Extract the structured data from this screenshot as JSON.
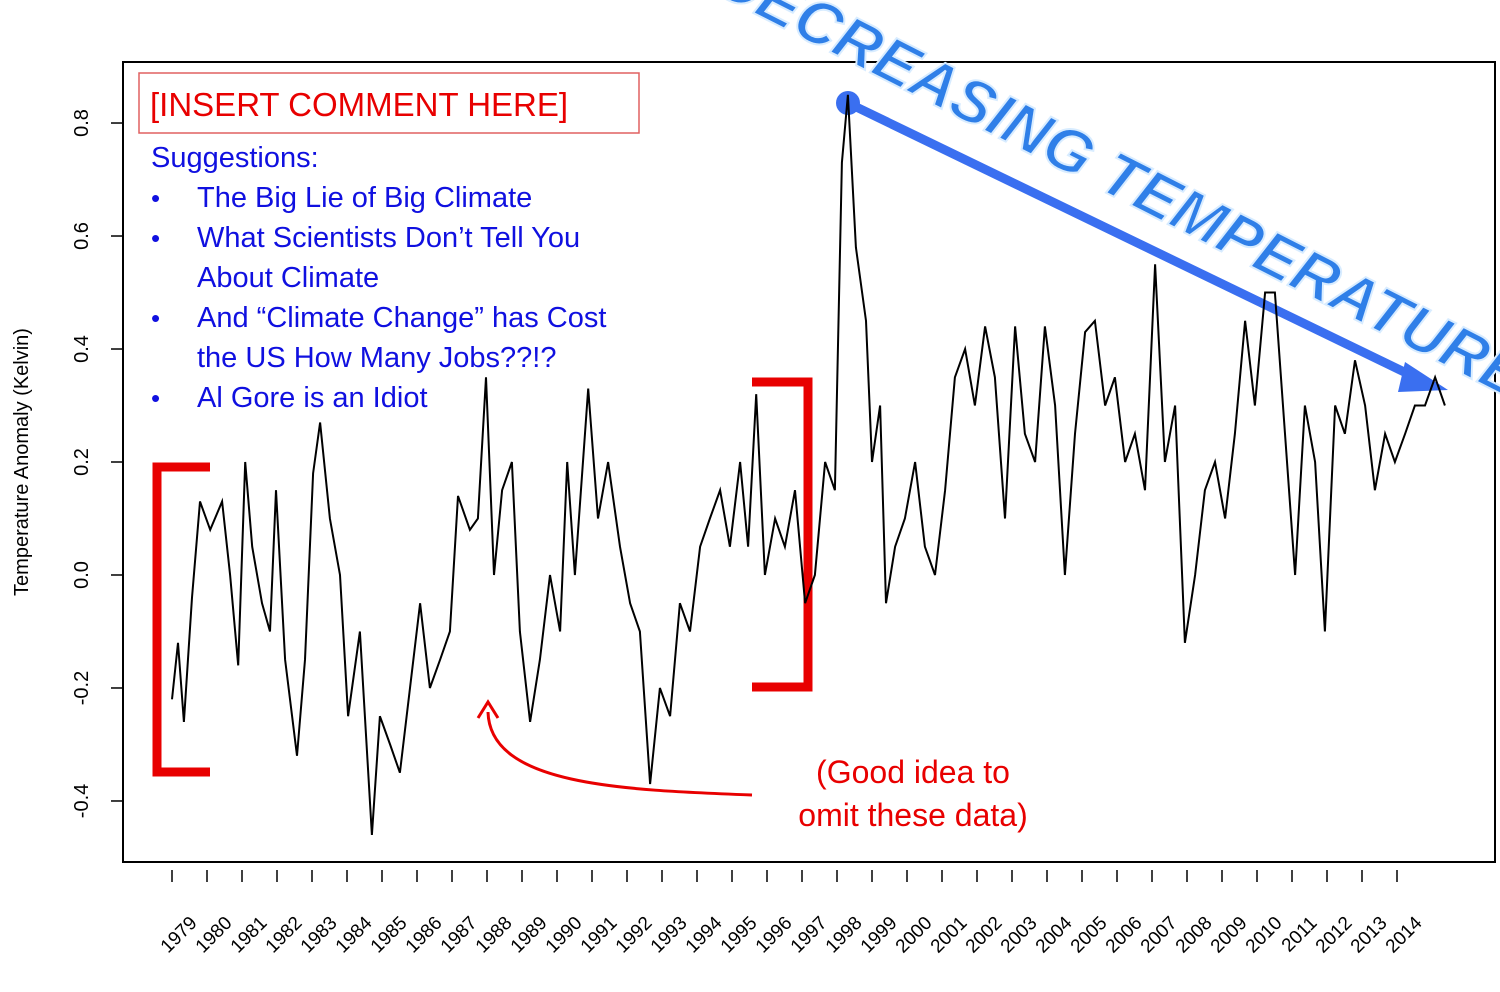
{
  "chart_data": {
    "type": "line",
    "y_label": "Temperature Anomaly (Kelvin)",
    "color": "#000000",
    "x": [
      1979.0,
      1979.17,
      1979.34,
      1979.57,
      1979.8,
      1980.09,
      1980.43,
      1980.66,
      1980.89,
      1981.09,
      1981.29,
      1981.57,
      1981.8,
      1981.97,
      1982.23,
      1982.57,
      1982.8,
      1983.03,
      1983.23,
      1983.51,
      1983.8,
      1984.03,
      1984.37,
      1984.71,
      1984.94,
      1985.23,
      1985.51,
      1985.8,
      1986.09,
      1986.37,
      1986.66,
      1986.94,
      1987.17,
      1987.51,
      1987.74,
      1987.97,
      1988.2,
      1988.43,
      1988.71,
      1988.94,
      1989.23,
      1989.51,
      1989.8,
      1990.09,
      1990.29,
      1990.51,
      1990.89,
      1991.17,
      1991.46,
      1991.8,
      1992.09,
      1992.37,
      1992.66,
      1992.94,
      1993.23,
      1993.51,
      1993.8,
      1994.09,
      1994.37,
      1994.66,
      1994.94,
      1995.23,
      1995.46,
      1995.69,
      1995.94,
      1996.23,
      1996.51,
      1996.8,
      1997.09,
      1997.37,
      1997.66,
      1997.94,
      1998.14,
      1998.31,
      1998.54,
      1998.83,
      1999.0,
      1999.23,
      1999.4,
      1999.66,
      1999.94,
      2000.23,
      2000.51,
      2000.8,
      2001.09,
      2001.37,
      2001.66,
      2001.94,
      2002.23,
      2002.51,
      2002.8,
      2003.09,
      2003.37,
      2003.66,
      2003.94,
      2004.23,
      2004.51,
      2004.8,
      2005.09,
      2005.37,
      2005.66,
      2005.94,
      2006.23,
      2006.51,
      2006.8,
      2007.09,
      2007.37,
      2007.66,
      2007.94,
      2008.23,
      2008.51,
      2008.8,
      2009.09,
      2009.37,
      2009.66,
      2009.94,
      2010.23,
      2010.51,
      2010.8,
      2011.09,
      2011.37,
      2011.66,
      2011.94,
      2012.23,
      2012.51,
      2012.8,
      2013.09,
      2013.37,
      2013.66,
      2013.94,
      2014.23,
      2014.51,
      2014.8,
      2015.09,
      2015.37
    ],
    "values": [
      -0.22,
      -0.12,
      -0.26,
      -0.04,
      0.13,
      0.08,
      0.13,
      0.0,
      -0.16,
      0.2,
      0.05,
      -0.05,
      -0.1,
      0.15,
      -0.15,
      -0.32,
      -0.15,
      0.18,
      0.27,
      0.1,
      0.0,
      -0.25,
      -0.1,
      -0.46,
      -0.25,
      -0.3,
      -0.35,
      -0.2,
      -0.05,
      -0.2,
      -0.15,
      -0.1,
      0.14,
      0.08,
      0.1,
      0.35,
      0.0,
      0.15,
      0.2,
      -0.1,
      -0.26,
      -0.15,
      0.0,
      -0.1,
      0.2,
      0.0,
      0.33,
      0.1,
      0.2,
      0.05,
      -0.05,
      -0.1,
      -0.37,
      -0.2,
      -0.25,
      -0.05,
      -0.1,
      0.05,
      0.1,
      0.15,
      0.05,
      0.2,
      0.05,
      0.32,
      0.0,
      0.1,
      0.05,
      0.15,
      -0.05,
      0.0,
      0.2,
      0.15,
      0.73,
      0.85,
      0.58,
      0.45,
      0.2,
      0.3,
      -0.05,
      0.05,
      0.1,
      0.2,
      0.05,
      0.0,
      0.15,
      0.35,
      0.4,
      0.3,
      0.44,
      0.35,
      0.1,
      0.44,
      0.25,
      0.2,
      0.44,
      0.3,
      0.0,
      0.25,
      0.43,
      0.45,
      0.3,
      0.35,
      0.2,
      0.25,
      0.15,
      0.55,
      0.2,
      0.3,
      -0.12,
      0.0,
      0.15,
      0.2,
      0.1,
      0.25,
      0.45,
      0.3,
      0.5,
      0.5,
      0.25,
      0.0,
      0.3,
      0.2,
      -0.1,
      0.3,
      0.25,
      0.38,
      0.3,
      0.15,
      0.25,
      0.2,
      0.25,
      0.3,
      0.3,
      0.35,
      0.3
    ],
    "xlim": [
      1977.6,
      2016.8
    ],
    "xticks": [
      1979,
      1980,
      1981,
      1982,
      1983,
      1984,
      1985,
      1986,
      1987,
      1988,
      1989,
      1990,
      1991,
      1992,
      1993,
      1994,
      1995,
      1996,
      1997,
      1998,
      1999,
      2000,
      2001,
      2002,
      2003,
      2004,
      2005,
      2006,
      2007,
      2008,
      2009,
      2010,
      2011,
      2012,
      2013,
      2014
    ],
    "ylim": [
      -0.508,
      0.908
    ],
    "yticks": [
      -0.4,
      -0.2,
      {
        "value": 0,
        "label": "0.0"
      },
      0.2,
      0.4,
      0.6,
      0.8
    ],
    "annotations": {
      "comment_box": "[INSERT COMMENT HERE]",
      "suggestions_title": "Suggestions:",
      "suggestions": [
        [
          "The Big Lie of Big Climate"
        ],
        [
          "What Scientists Don’t Tell You",
          "About Climate"
        ],
        [
          "And “Climate Change” has Cost",
          "the US How Many Jobs??!?"
        ],
        [
          "Al Gore is an Idiot"
        ]
      ],
      "omit_note": [
        "(Good idea to",
        "omit these data)"
      ],
      "banner": "DECREASING TEMPERATURES!"
    }
  }
}
